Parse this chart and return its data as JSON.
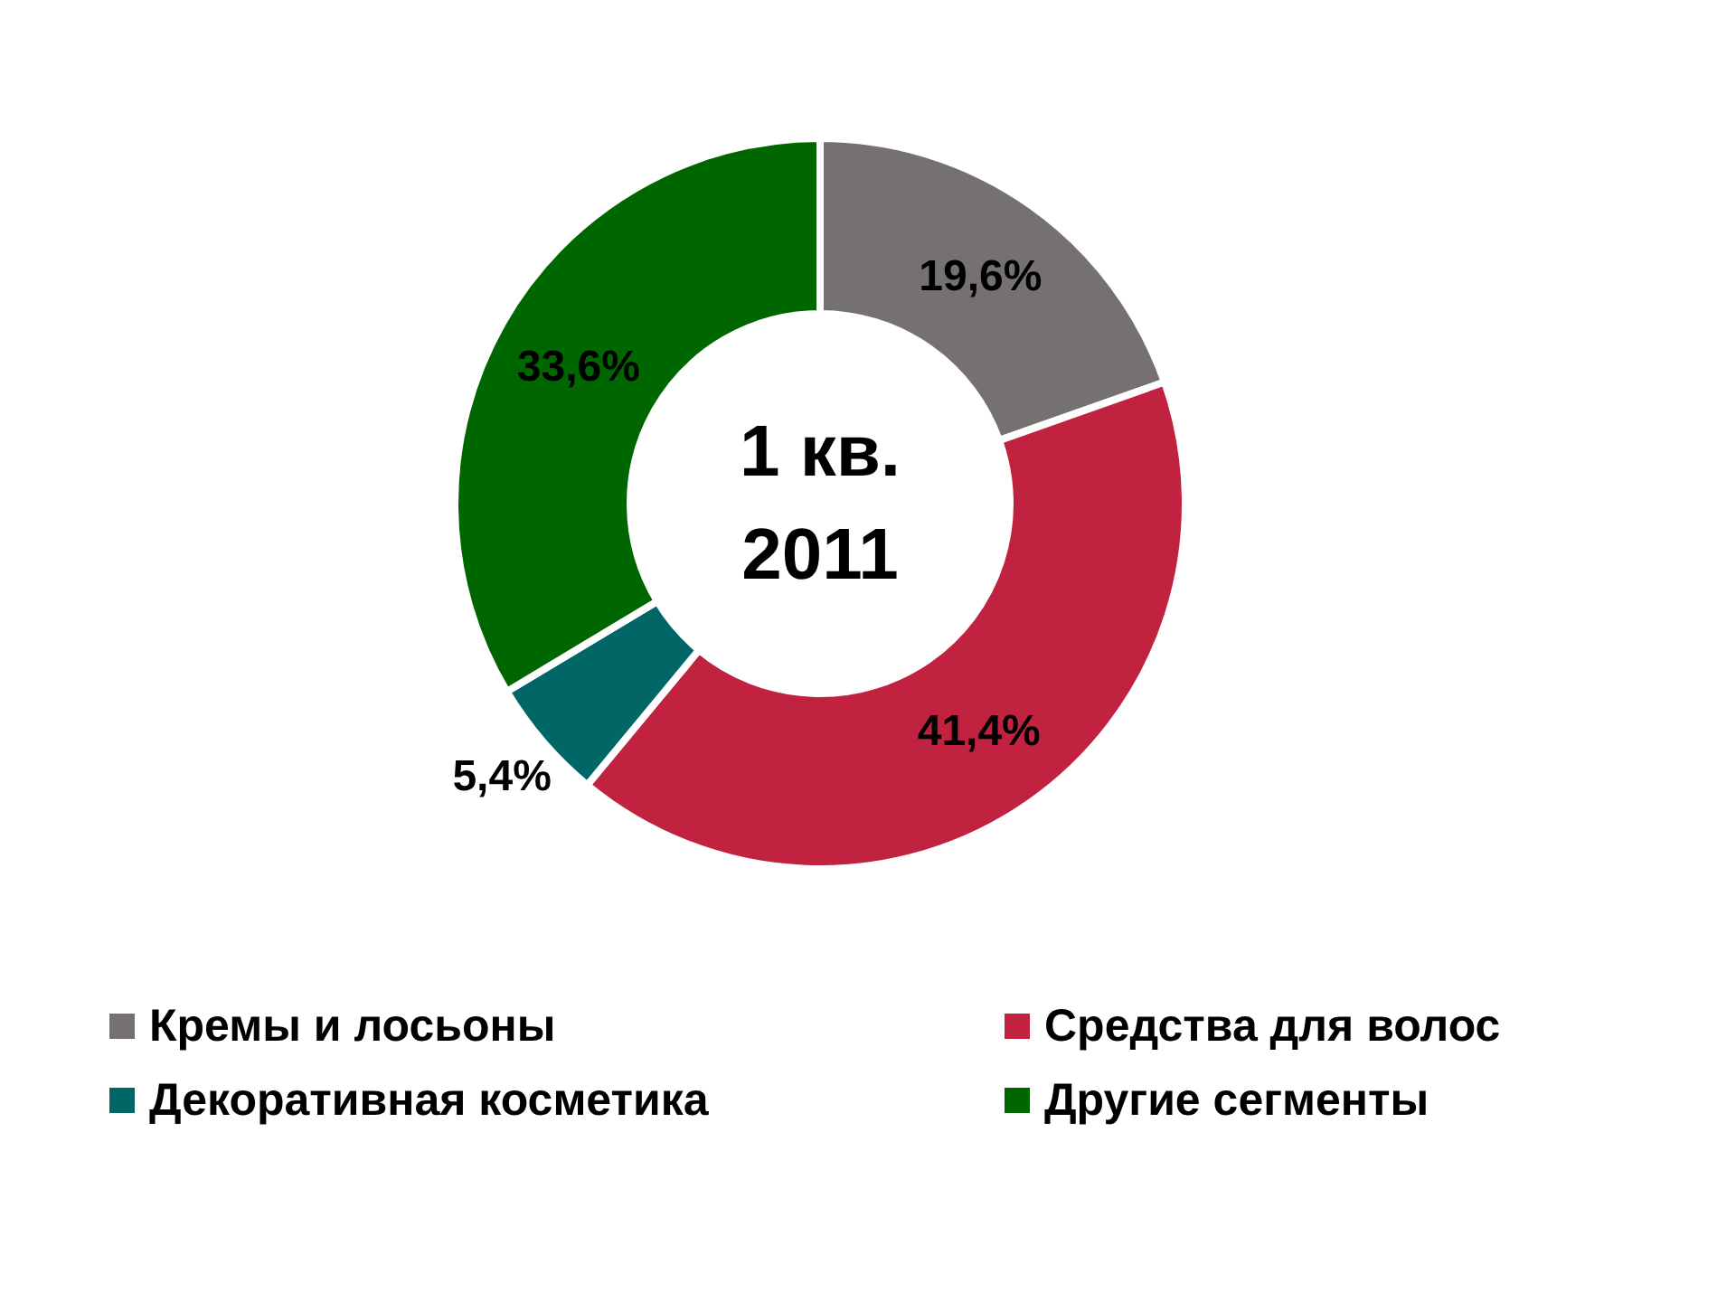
{
  "chart_data": {
    "type": "donut",
    "title": "1 кв.\n2011",
    "categories": [
      "Кремы и лосьоны",
      "Средства для волос",
      "Декоративная косметика",
      "Другие сегменты"
    ],
    "values": [
      19.6,
      41.4,
      5.4,
      33.6
    ],
    "value_labels": [
      "19,6%",
      "41,4%",
      "5,4%",
      "33,6%"
    ],
    "colors": [
      "#767171",
      "#c0223f",
      "#006666",
      "#006600"
    ],
    "legend": "bottom"
  }
}
